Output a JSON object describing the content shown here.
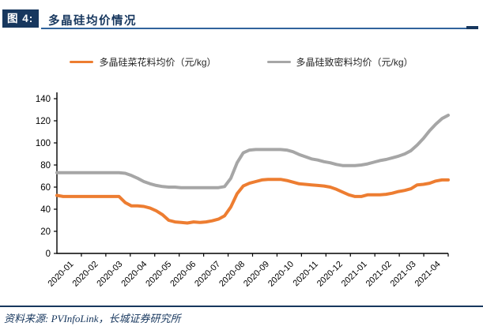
{
  "header": {
    "figure_label": "图 4:",
    "title": "多晶硅均价情况"
  },
  "colors": {
    "accent_navy": "#17375E",
    "rule_blue": "#31639C",
    "orange": "#ED7D31",
    "gray": "#A6A6A6",
    "axis": "#000000"
  },
  "legend": [
    {
      "id": "cauliflower",
      "label": "多晶硅菜花料均价（元/kg）",
      "color": "#ED7D31"
    },
    {
      "id": "dense",
      "label": "多晶硅致密料均价（元/kg）",
      "color": "#A6A6A6"
    }
  ],
  "chart_data": {
    "type": "line",
    "title": "多晶硅均价情况",
    "unit": "元/kg",
    "xlabel": "",
    "ylabel": "",
    "ylim": [
      0,
      140
    ],
    "ytick_step": 20,
    "grid": false,
    "legend_position": "top",
    "categories": [
      "2020-01",
      "2020-02",
      "2020-03",
      "2020-04",
      "2020-05",
      "2020-06",
      "2020-07",
      "2020-08",
      "2020-09",
      "2020-10",
      "2020-11",
      "2020-12",
      "2021-01",
      "2021-02",
      "2021-03",
      "2021-04"
    ],
    "points_per_category": 4,
    "series": [
      {
        "id": "dense",
        "name": "多晶硅致密料均价（元/kg）",
        "color": "#A6A6A6",
        "values": [
          73,
          73,
          73,
          73,
          73,
          73,
          73,
          73,
          73,
          73,
          73,
          72.5,
          70.5,
          68,
          65,
          63,
          61.5,
          60.5,
          60,
          60,
          59.5,
          59.5,
          59.5,
          59.5,
          59.5,
          59.5,
          59.5,
          60.5,
          68,
          82,
          91,
          93.5,
          94,
          94,
          94,
          94,
          94,
          93.5,
          92,
          89.5,
          87.5,
          85.5,
          84.5,
          83,
          82,
          80.5,
          79.5,
          79.5,
          79.5,
          80,
          81,
          82.5,
          84,
          85,
          86.5,
          88,
          90,
          93,
          98,
          104,
          111,
          117,
          122,
          125
        ]
      },
      {
        "id": "cauliflower",
        "name": "多晶硅菜花料均价（元/kg）",
        "color": "#ED7D31",
        "values": [
          52.5,
          51.5,
          51.5,
          51.5,
          51.5,
          51.5,
          51.5,
          51.5,
          51.5,
          51.5,
          51.5,
          46,
          43,
          43,
          42.5,
          41,
          38.5,
          35,
          30,
          28.5,
          28,
          27.5,
          28.5,
          28,
          28.5,
          29.5,
          31,
          34,
          42,
          54,
          61,
          63.5,
          65,
          66.5,
          67,
          67,
          67,
          66,
          64.5,
          63,
          62.5,
          62,
          61.5,
          61,
          60,
          58,
          55.5,
          53,
          51.5,
          51.5,
          53,
          53,
          53,
          53.5,
          54.5,
          56,
          57,
          58.5,
          62,
          62.5,
          63.5,
          65.5,
          66.5,
          66.5
        ]
      }
    ]
  },
  "footer": {
    "source": "资料来源: PVInfoLink，长城证券研究所"
  }
}
